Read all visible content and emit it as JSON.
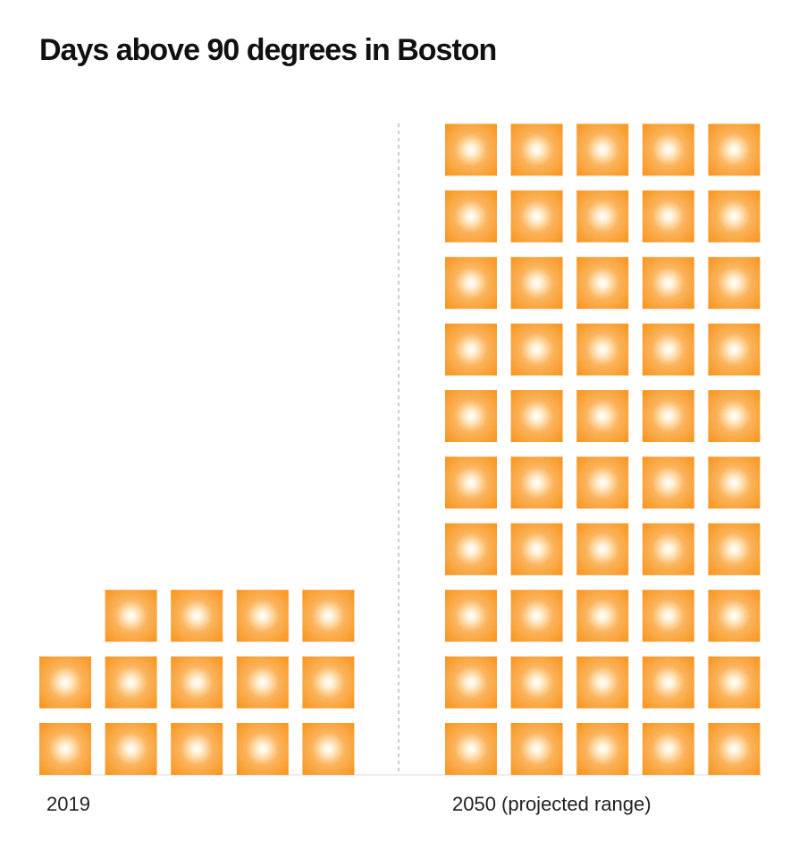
{
  "chart_data": {
    "type": "pictograph",
    "title": "Days above 90 degrees in Boston",
    "categories": [
      "2019",
      "2050 (projected range)"
    ],
    "values": [
      14,
      50
    ],
    "color": "#f7941d"
  }
}
